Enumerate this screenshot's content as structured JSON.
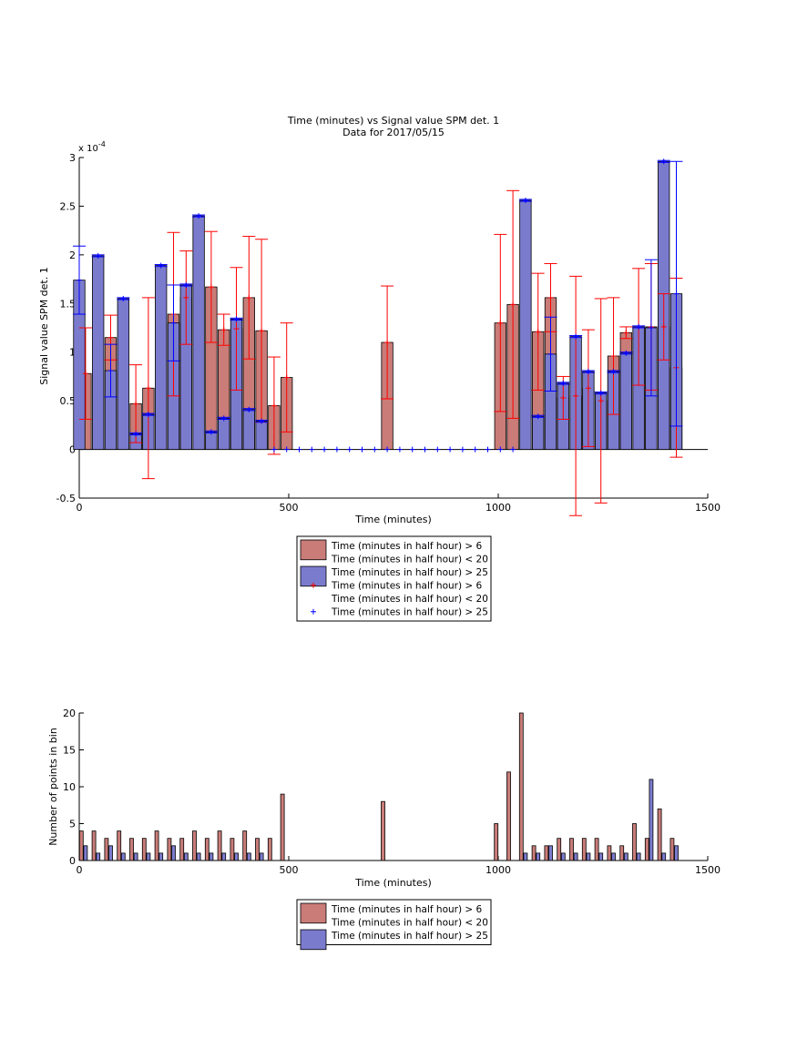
{
  "chart_data": [
    {
      "type": "bar",
      "title": "Time (minutes) vs Signal value SPM det. 1",
      "subtitle": "Data for 2017/05/15",
      "xlabel": "Time (minutes)",
      "ylabel": "Signal value SPM det. 1",
      "y_exponent_label": "x 10",
      "y_exponent_value": "-4",
      "xlim": [
        0,
        1500
      ],
      "ylim": [
        -0.5,
        3
      ],
      "y_scale_factor": 0.0001,
      "x_ticks": [
        0,
        500,
        1000,
        1500
      ],
      "y_ticks": [
        -0.5,
        0,
        0.5,
        1,
        1.5,
        2,
        2.5,
        3
      ],
      "legend": {
        "placement": "below",
        "entries": [
          {
            "label": "Time (minutes in half hour) > 6",
            "marker": "",
            "color": "#c97c78"
          },
          {
            "label": "Time (minutes in half hour) < 20",
            "marker": "",
            "color": ""
          },
          {
            "label": "Time (minutes in half hour) > 25",
            "marker": "",
            "color": "#7b7bce"
          },
          {
            "label": "Time (minutes in half hour) > 6",
            "marker": "+",
            "color": "#ff0000"
          },
          {
            "label": "Time (minutes in half hour) < 20",
            "marker": "",
            "color": ""
          },
          {
            "label": "Time (minutes in half hour) > 25",
            "marker": "+",
            "color": "#0000ff"
          }
        ]
      },
      "series": [
        {
          "color": "#c97c78",
          "error_color": "#ff0000",
          "x": [
            15,
            75,
            135,
            165,
            225,
            255,
            315,
            345,
            375,
            405,
            435,
            465,
            495,
            735,
            1005,
            1035,
            1095,
            1125,
            1155,
            1185,
            1215,
            1245,
            1275,
            1305,
            1335,
            1365,
            1395,
            1425
          ],
          "values": [
            0.78,
            1.15,
            0.47,
            0.63,
            1.39,
            1.56,
            1.67,
            1.23,
            1.24,
            1.56,
            1.22,
            0.45,
            0.74,
            1.1,
            1.3,
            1.49,
            1.21,
            1.56,
            0.53,
            0.55,
            0.63,
            0.5,
            0.96,
            1.2,
            1.26,
            1.26,
            1.26,
            0.84
          ],
          "errors": [
            0.47,
            0.23,
            0.4,
            0.93,
            0.84,
            0.48,
            0.57,
            0.16,
            0.63,
            0.63,
            0.94,
            0.5,
            0.56,
            0.58,
            0.91,
            1.17,
            0.6,
            0.35,
            0.22,
            1.23,
            0.6,
            1.05,
            0.6,
            0.06,
            0.6,
            0.65,
            0.34,
            0.92
          ]
        },
        {
          "color": "#7b7bce",
          "error_color": "#0000ff",
          "x": [
            0,
            45,
            75,
            105,
            135,
            165,
            195,
            225,
            255,
            285,
            315,
            345,
            375,
            405,
            435,
            1065,
            1095,
            1125,
            1155,
            1185,
            1215,
            1245,
            1275,
            1305,
            1335,
            1365,
            1395,
            1425
          ],
          "values": [
            1.74,
            1.99,
            0.81,
            1.55,
            0.16,
            0.36,
            1.89,
            1.3,
            1.69,
            2.4,
            0.18,
            0.32,
            1.34,
            0.41,
            0.29,
            2.56,
            0.34,
            0.98,
            0.68,
            1.16,
            0.8,
            0.58,
            0.8,
            0.99,
            1.26,
            1.25,
            2.96,
            1.6
          ],
          "errors": [
            0.35,
            0.01,
            0.27,
            0.01,
            0.01,
            0.01,
            0.01,
            0.39,
            0.01,
            0.01,
            0.01,
            0.01,
            0.01,
            0.01,
            0.01,
            0.01,
            0.01,
            0.38,
            0.01,
            0.01,
            0.01,
            0.01,
            0.01,
            0.01,
            0.01,
            0.7,
            0.01,
            1.36
          ]
        }
      ]
    },
    {
      "type": "bar",
      "xlabel": "Time (minutes)",
      "ylabel": "Number of points in bin",
      "xlim": [
        0,
        1500
      ],
      "ylim": [
        0,
        20
      ],
      "x_ticks": [
        0,
        500,
        1000,
        1500
      ],
      "y_ticks": [
        0,
        5,
        10,
        15,
        20
      ],
      "legend": {
        "placement": "below",
        "entries": [
          {
            "label": "Time (minutes in half hour) > 6",
            "color": "#c97c78"
          },
          {
            "label": "Time (minutes in half hour) < 20",
            "color": ""
          },
          {
            "label": "Time (minutes in half hour) > 25",
            "color": "#7b7bce"
          }
        ]
      },
      "series": [
        {
          "color": "#c97c78",
          "x": [
            5,
            35,
            65,
            95,
            125,
            155,
            185,
            215,
            245,
            275,
            305,
            335,
            365,
            395,
            425,
            455,
            485,
            725,
            995,
            1025,
            1055,
            1085,
            1115,
            1145,
            1175,
            1205,
            1235,
            1265,
            1295,
            1325,
            1355,
            1385,
            1415
          ],
          "values": [
            4,
            4,
            3,
            4,
            3,
            3,
            4,
            3,
            3,
            4,
            3,
            4,
            3,
            4,
            3,
            3,
            9,
            8,
            5,
            12,
            20,
            2,
            2,
            3,
            3,
            3,
            3,
            2,
            2,
            5,
            3,
            7,
            3
          ]
        },
        {
          "color": "#7b7bce",
          "x": [
            15,
            45,
            75,
            105,
            135,
            165,
            195,
            225,
            255,
            285,
            315,
            345,
            375,
            405,
            435,
            1065,
            1095,
            1125,
            1155,
            1185,
            1215,
            1245,
            1275,
            1305,
            1335,
            1365,
            1395,
            1425
          ],
          "values": [
            2,
            1,
            2,
            1,
            1,
            1,
            1,
            2,
            1,
            1,
            1,
            1,
            1,
            1,
            1,
            1,
            1,
            2,
            1,
            1,
            1,
            1,
            1,
            1,
            1,
            11,
            1,
            2
          ]
        }
      ]
    }
  ]
}
